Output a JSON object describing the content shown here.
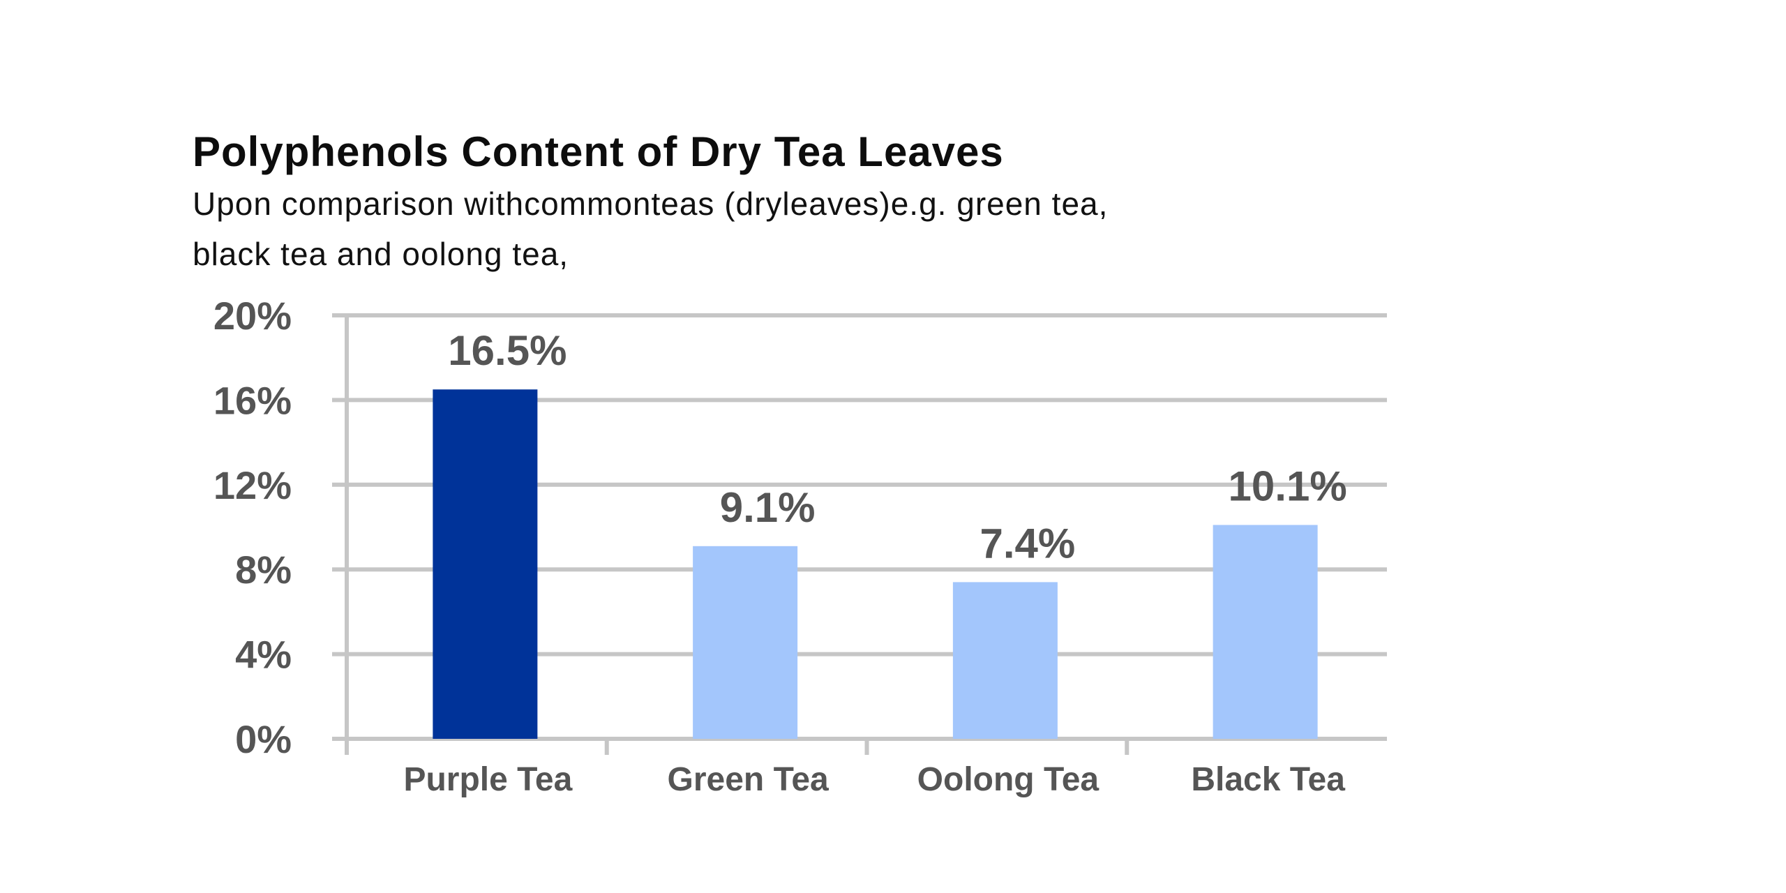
{
  "chart_data": {
    "type": "bar",
    "title": "Polyphenols Content of Dry Tea Leaves",
    "subtitle_lines": [
      "Upon comparison withcommonteas (dryleaves)e.g. green tea,",
      "black tea and oolong tea,"
    ],
    "categories": [
      "Purple Tea",
      "Green Tea",
      "Oolong Tea",
      "Black Tea"
    ],
    "values": [
      16.5,
      9.1,
      7.4,
      10.1
    ],
    "value_labels": [
      "16.5%",
      "9.1%",
      "7.4%",
      "10.1%"
    ],
    "ylim": [
      0,
      20
    ],
    "yticks": [
      0,
      4,
      8,
      12,
      16,
      20
    ],
    "ytick_labels": [
      "0%",
      "4%",
      "8%",
      "12%",
      "16%",
      "20%"
    ],
    "xlabel": "",
    "ylabel": "",
    "grid": true,
    "legend": "none",
    "colors": {
      "highlight_bar": "#003399",
      "bar": "#a3c6fc",
      "grid": "#c6c6c6",
      "label_text": "#555555"
    }
  }
}
